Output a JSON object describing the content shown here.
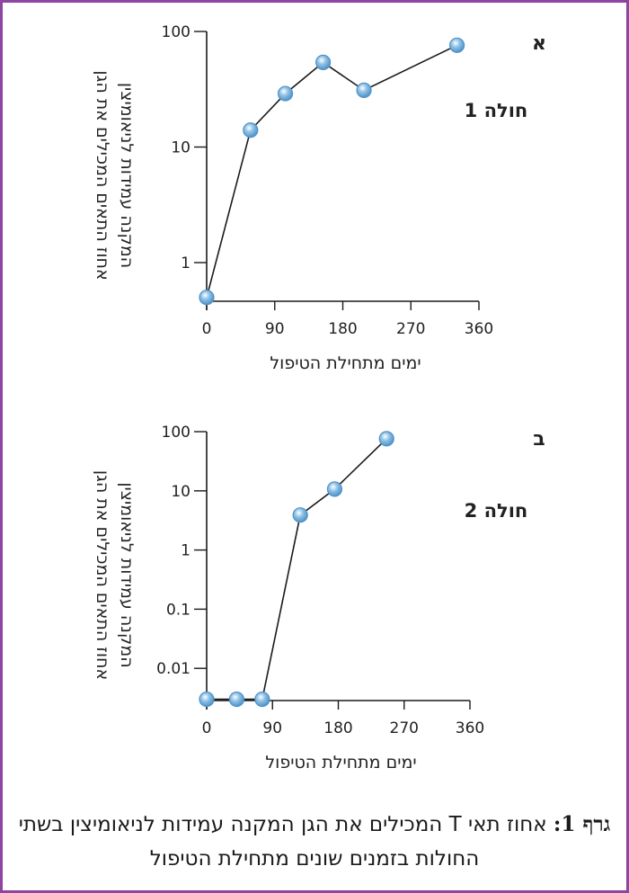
{
  "chart_data": [
    {
      "type": "line",
      "panel_label": "א",
      "series_label": "חולה 1",
      "title": "",
      "xlabel": "ימים מתחילת הטיפול",
      "ylabel_lines": [
        "אחוז התאים המכילים את הגן",
        "המקנה עמידות לניאומיצין"
      ],
      "yscale": "log",
      "xlim": [
        0,
        360
      ],
      "ylim": [
        0.4,
        100
      ],
      "x_ticks": [
        0,
        90,
        180,
        270,
        360
      ],
      "x_tick_labels": [
        "0",
        "90",
        "180",
        "270",
        "360"
      ],
      "y_ticks": [
        1,
        10,
        100
      ],
      "y_tick_labels": [
        "1",
        "10",
        "100"
      ],
      "grid": false,
      "series": [
        {
          "name": "חולה 1",
          "x": [
            0,
            58,
            104,
            154,
            208,
            331
          ],
          "y": [
            0.5,
            14,
            29,
            54,
            31,
            76
          ]
        }
      ]
    },
    {
      "type": "line",
      "panel_label": "ב",
      "series_label": "חולה 2",
      "title": "",
      "xlabel": "ימים מתחילת הטיפול",
      "ylabel_lines": [
        "אחוז התאים המכילים את הגן",
        "המקנה עמידות לניאומיצין"
      ],
      "yscale": "log",
      "xlim": [
        0,
        360
      ],
      "ylim": [
        0.0028,
        100
      ],
      "x_ticks": [
        0,
        90,
        180,
        270,
        360
      ],
      "x_tick_labels": [
        "0",
        "90",
        "180",
        "270",
        "360"
      ],
      "y_ticks": [
        0.01,
        0.1,
        1,
        10,
        100
      ],
      "y_tick_labels": [
        "0.01",
        "0.1",
        "1",
        "10",
        "100"
      ],
      "grid": false,
      "series": [
        {
          "name": "חולה 2",
          "x": [
            0,
            41,
            76,
            128,
            175,
            246
          ],
          "y": [
            0.003,
            0.003,
            0.003,
            3.9,
            10.7,
            76
          ]
        }
      ]
    }
  ],
  "caption": {
    "label": "גרף 1:",
    "text": " אחוז תאי T המכילים את הגן המקנה עמידות לניאומיצין בשתי החולות בזמנים שונים מתחילת הטיפול"
  },
  "colors": {
    "border": "#8e44a0",
    "marker_fill": "#8fc1e6",
    "marker_stroke": "#4f93c8",
    "line": "#1a1a1a"
  }
}
